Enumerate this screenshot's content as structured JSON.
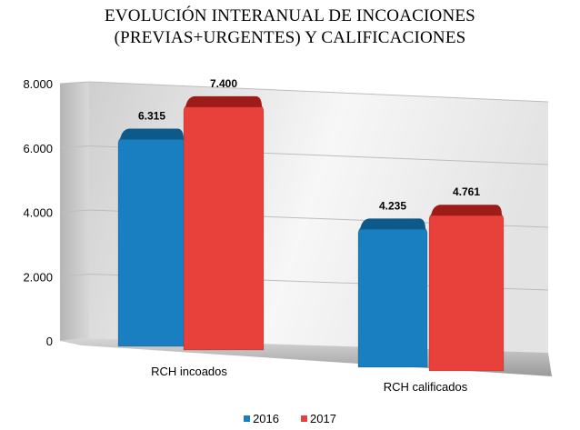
{
  "chart_data": {
    "type": "bar",
    "title_line1": "EVOLUCIÓN INTERANUAL DE INCOACIONES",
    "title_line2": "(PREVIAS+URGENTES) Y CALIFICACIONES",
    "categories": [
      "RCH incoados",
      "RCH calificados"
    ],
    "series": [
      {
        "name": "2016",
        "values": [
          6315,
          4235
        ],
        "labels": [
          "6.315",
          "4.235"
        ],
        "color": "#1a7fc1",
        "top_color": "#0d5a8a"
      },
      {
        "name": "2017",
        "values": [
          7400,
          4761
        ],
        "labels": [
          "7.400",
          "4.761"
        ],
        "color": "#e8403a",
        "top_color": "#9e1c18"
      }
    ],
    "ylim": [
      0,
      8000
    ],
    "yticks": [
      {
        "value": 0,
        "label": "0"
      },
      {
        "value": 2000,
        "label": "2.000"
      },
      {
        "value": 4000,
        "label": "4.000"
      },
      {
        "value": 6000,
        "label": "6.000"
      },
      {
        "value": 8000,
        "label": "8.000"
      }
    ],
    "grid": true,
    "legend_placement": "bottom",
    "xlabel": "",
    "ylabel": ""
  }
}
